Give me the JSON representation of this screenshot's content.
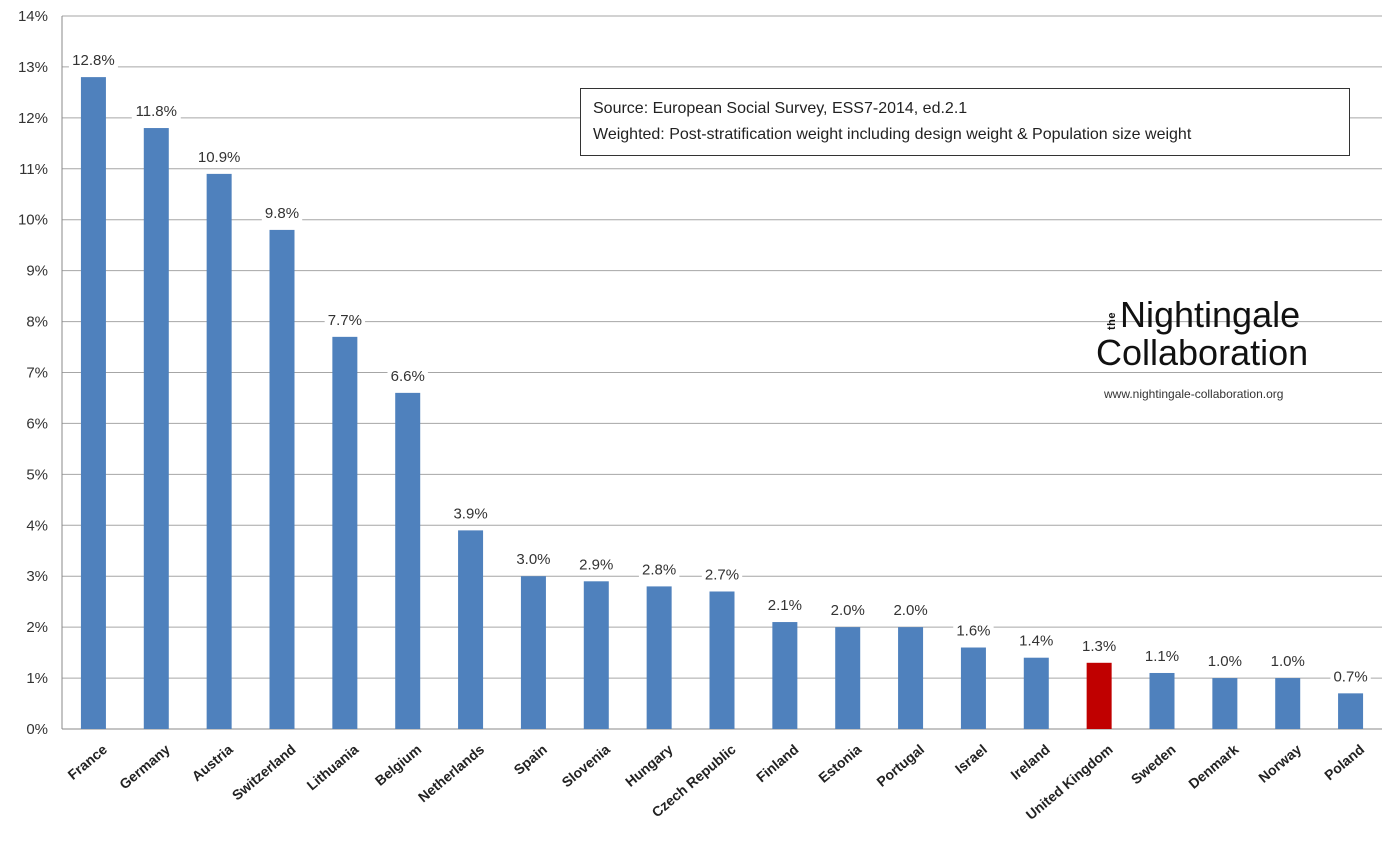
{
  "chart_data": {
    "type": "bar",
    "categories": [
      "France",
      "Germany",
      "Austria",
      "Switzerland",
      "Lithuania",
      "Belgium",
      "Netherlands",
      "Spain",
      "Slovenia",
      "Hungary",
      "Czech Republic",
      "Finland",
      "Estonia",
      "Portugal",
      "Israel",
      "Ireland",
      "United Kingdom",
      "Sweden",
      "Denmark",
      "Norway",
      "Poland"
    ],
    "values": [
      12.8,
      11.8,
      10.9,
      9.8,
      7.7,
      6.6,
      3.9,
      3.0,
      2.9,
      2.8,
      2.7,
      2.1,
      2.0,
      2.0,
      1.6,
      1.4,
      1.3,
      1.1,
      1.0,
      1.0,
      0.7
    ],
    "value_labels": [
      "12.8%",
      "11.8%",
      "10.9%",
      "9.8%",
      "7.7%",
      "6.6%",
      "3.9%",
      "3.0%",
      "2.9%",
      "2.8%",
      "2.7%",
      "2.1%",
      "2.0%",
      "2.0%",
      "1.6%",
      "1.4%",
      "1.3%",
      "1.1%",
      "1.0%",
      "1.0%",
      "0.7%"
    ],
    "highlight_category": "United Kingdom",
    "ylim": [
      0,
      14
    ],
    "yticks": [
      "0%",
      "1%",
      "2%",
      "3%",
      "4%",
      "5%",
      "6%",
      "7%",
      "8%",
      "9%",
      "10%",
      "11%",
      "12%",
      "13%",
      "14%"
    ],
    "grid": true,
    "colors": {
      "bar": "#4f81bd",
      "highlight": "#c00000",
      "grid": "#a6a6a6"
    }
  },
  "source_box": {
    "line1": "Source: European Social Survey, ESS7-2014, ed.2.1",
    "line2": "Weighted: Post-stratification weight including design weight & Population size weight"
  },
  "logo": {
    "the": "the",
    "line1": "Nightingale",
    "line2": "Collaboration",
    "url": "www.nightingale-collaboration.org"
  }
}
